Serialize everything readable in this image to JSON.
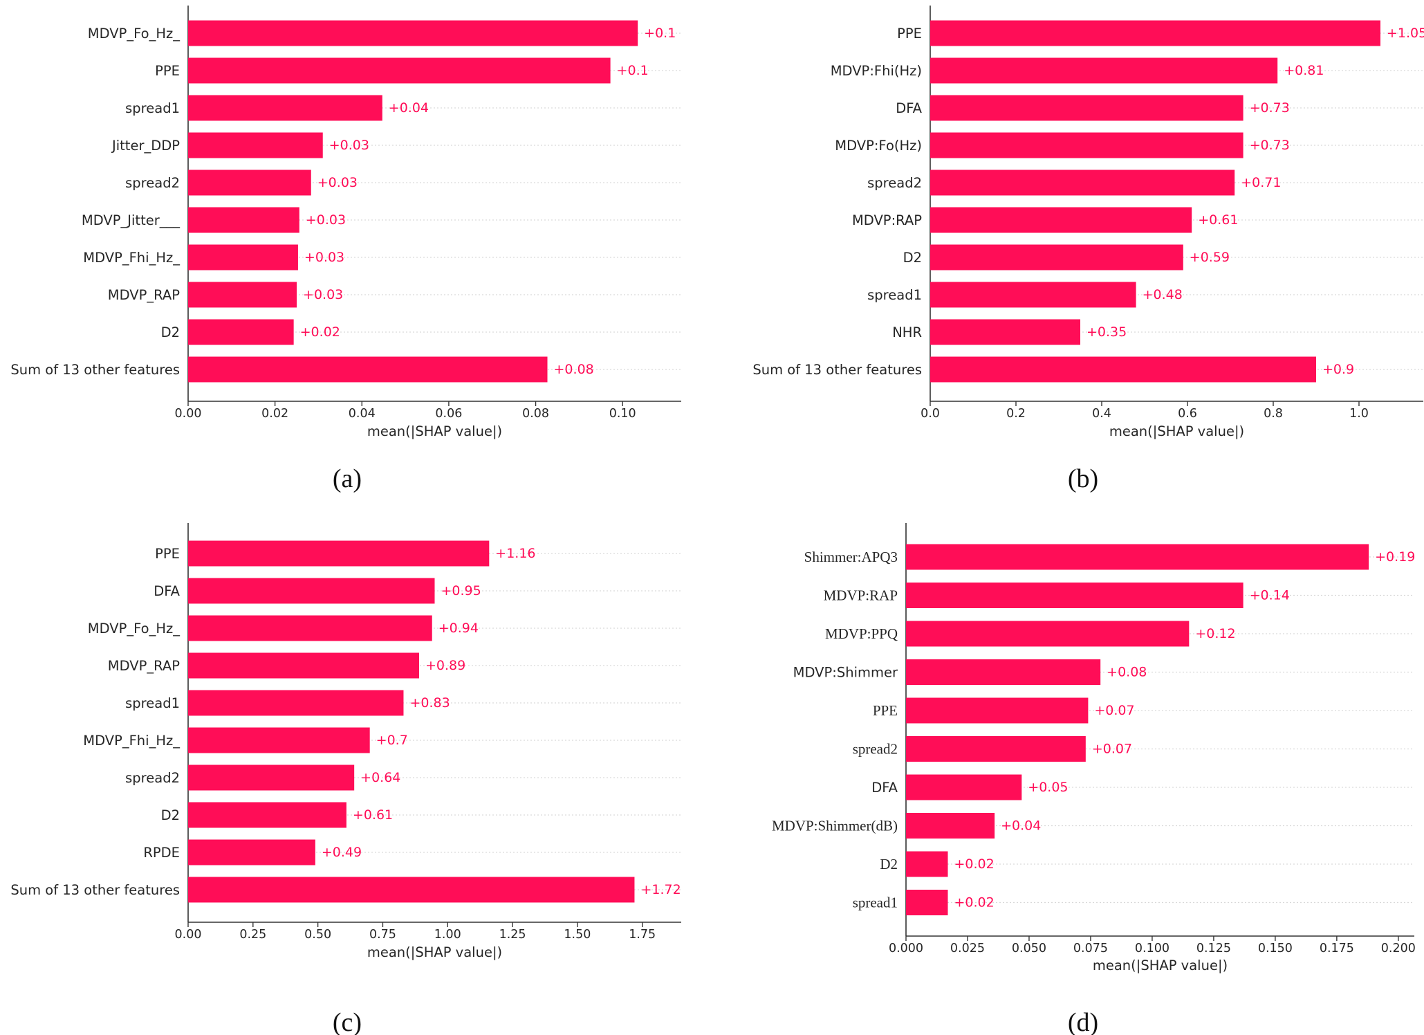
{
  "figure": {
    "bar_color": "#ff0d57",
    "label_color": "#ff0d57",
    "grid_color": "#d9d9d9"
  },
  "chart_data": [
    {
      "type": "bar",
      "orientation": "horizontal",
      "caption": "(a)",
      "xlabel": "mean(|SHAP value|)",
      "ylabel": "",
      "title": "",
      "xlim": [
        0,
        0.1135
      ],
      "xticks": [
        "0.00",
        "0.02",
        "0.04",
        "0.06",
        "0.08",
        "0.10"
      ],
      "xtick_values": [
        0,
        0.02,
        0.04,
        0.06,
        0.08,
        0.1
      ],
      "categories": [
        "MDVP_Fo_Hz_",
        "PPE",
        "spread1",
        "Jitter_DDP",
        "spread2",
        "MDVP_Jitter___",
        "MDVP_Fhi_Hz_",
        "MDVP_RAP",
        "D2",
        "Sum of 13 other features"
      ],
      "values": [
        0.1035,
        0.0972,
        0.0447,
        0.031,
        0.0283,
        0.0256,
        0.0253,
        0.025,
        0.0243,
        0.0827
      ],
      "value_labels": [
        "+0.1",
        "+0.1",
        "+0.04",
        "+0.03",
        "+0.03",
        "+0.03",
        "+0.03",
        "+0.03",
        "+0.02",
        "+0.08"
      ],
      "grid": "horizontal dotted"
    },
    {
      "type": "bar",
      "orientation": "horizontal",
      "caption": "(b)",
      "xlabel": "mean(|SHAP value|)",
      "ylabel": "",
      "title": "",
      "xlim": [
        0,
        1.15
      ],
      "xticks": [
        "0.0",
        "0.2",
        "0.4",
        "0.6",
        "0.8",
        "1.0"
      ],
      "xtick_values": [
        0,
        0.2,
        0.4,
        0.6,
        0.8,
        1.0
      ],
      "categories": [
        "PPE",
        "MDVP:Fhi(Hz)",
        "DFA",
        "MDVP:Fo(Hz)",
        "spread2",
        "MDVP:RAP",
        "D2",
        "spread1",
        "NHR",
        "Sum of 13 other features"
      ],
      "values": [
        1.05,
        0.81,
        0.73,
        0.73,
        0.71,
        0.61,
        0.59,
        0.48,
        0.35,
        0.9
      ],
      "value_labels": [
        "+1.05",
        "+0.81",
        "+0.73",
        "+0.73",
        "+0.71",
        "+0.61",
        "+0.59",
        "+0.48",
        "+0.35",
        "+0.9"
      ],
      "grid": "horizontal dotted"
    },
    {
      "type": "bar",
      "orientation": "horizontal",
      "caption": "(c)",
      "xlabel": "mean(|SHAP value|)",
      "ylabel": "",
      "title": "",
      "xlim": [
        0,
        1.9
      ],
      "xticks": [
        "0.00",
        "0.25",
        "0.50",
        "0.75",
        "1.00",
        "1.25",
        "1.50",
        "1.75"
      ],
      "xtick_values": [
        0,
        0.25,
        0.5,
        0.75,
        1.0,
        1.25,
        1.5,
        1.75
      ],
      "categories": [
        "PPE",
        "DFA",
        "MDVP_Fo_Hz_",
        "MDVP_RAP",
        "spread1",
        "MDVP_Fhi_Hz_",
        "spread2",
        "D2",
        "RPDE",
        "Sum of 13 other features"
      ],
      "values": [
        1.16,
        0.95,
        0.94,
        0.89,
        0.83,
        0.7,
        0.64,
        0.61,
        0.49,
        1.72
      ],
      "value_labels": [
        "+1.16",
        "+0.95",
        "+0.94",
        "+0.89",
        "+0.83",
        "+0.7",
        "+0.64",
        "+0.61",
        "+0.49",
        "+1.72"
      ],
      "grid": "horizontal dotted"
    },
    {
      "type": "bar",
      "orientation": "horizontal",
      "caption": "(d)",
      "xlabel": "mean(|SHAP value|)",
      "ylabel": "",
      "title": "",
      "xlim": [
        0,
        0.2065
      ],
      "xticks": [
        "0.000",
        "0.025",
        "0.050",
        "0.075",
        "0.100",
        "0.125",
        "0.150",
        "0.175",
        "0.200"
      ],
      "xtick_values": [
        0,
        0.025,
        0.05,
        0.075,
        0.1,
        0.125,
        0.15,
        0.175,
        0.2
      ],
      "categories": [
        "Shimmer:APQ3",
        "MDVP:RAP",
        "MDVP:PPQ",
        "MDVP:Shimmer",
        "PPE",
        "spread2",
        "DFA",
        "MDVP:Shimmer(dB)",
        "D2",
        "spread1"
      ],
      "values": [
        0.188,
        0.137,
        0.115,
        0.079,
        0.074,
        0.073,
        0.047,
        0.036,
        0.017,
        0.017
      ],
      "value_labels": [
        "+0.19",
        "+0.14",
        "+0.12",
        "+0.08",
        "+0.07",
        "+0.07",
        "+0.05",
        "+0.04",
        "+0.02",
        "+0.02"
      ],
      "grid": "horizontal dotted"
    }
  ]
}
